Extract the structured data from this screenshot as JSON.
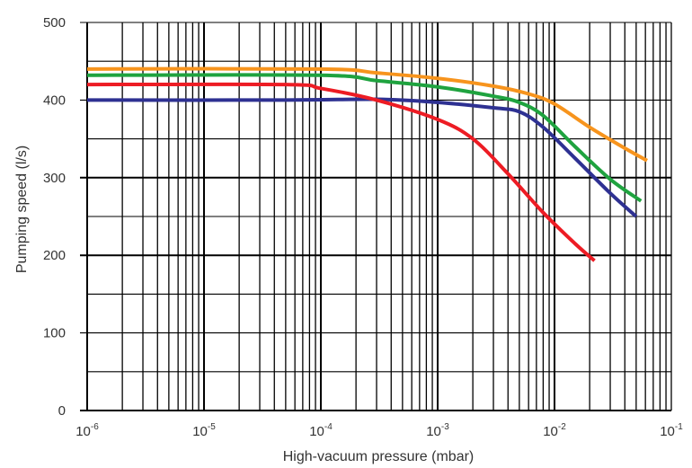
{
  "chart_data": {
    "type": "line",
    "xlabel": "High-vacuum pressure (mbar)",
    "ylabel": "Pumping speed (l/s)",
    "xscale": "log",
    "xlim": [
      1e-06,
      0.1
    ],
    "ylim": [
      0,
      500
    ],
    "grid": true,
    "x_ticks": [
      {
        "base": "10",
        "exp": "-6"
      },
      {
        "base": "10",
        "exp": "-5"
      },
      {
        "base": "10",
        "exp": "-4"
      },
      {
        "base": "10",
        "exp": "-3"
      },
      {
        "base": "10",
        "exp": "-2"
      },
      {
        "base": "10",
        "exp": "-1"
      }
    ],
    "y_ticks": [
      "0",
      "100",
      "200",
      "300",
      "400",
      "500"
    ],
    "series": [
      {
        "color": "#f7941d",
        "points": [
          [
            1e-06,
            440
          ],
          [
            0.0001,
            440
          ],
          [
            0.0003,
            435
          ],
          [
            0.001,
            428
          ],
          [
            0.003,
            418
          ],
          [
            0.006,
            408
          ],
          [
            0.01,
            395
          ],
          [
            0.02,
            365
          ],
          [
            0.04,
            338
          ],
          [
            0.062,
            322
          ]
        ]
      },
      {
        "color": "#1fa33f",
        "points": [
          [
            1e-06,
            432
          ],
          [
            0.0001,
            432
          ],
          [
            0.0003,
            425
          ],
          [
            0.001,
            417
          ],
          [
            0.003,
            405
          ],
          [
            0.005,
            397
          ],
          [
            0.008,
            380
          ],
          [
            0.015,
            340
          ],
          [
            0.03,
            298
          ],
          [
            0.055,
            270
          ]
        ]
      },
      {
        "color": "#2e3192",
        "points": [
          [
            1e-06,
            400
          ],
          [
            5e-05,
            400
          ],
          [
            0.0003,
            401
          ],
          [
            0.001,
            397
          ],
          [
            0.003,
            390
          ],
          [
            0.005,
            385
          ],
          [
            0.008,
            365
          ],
          [
            0.015,
            325
          ],
          [
            0.03,
            280
          ],
          [
            0.05,
            250
          ]
        ]
      },
      {
        "color": "#ed1c24",
        "points": [
          [
            1e-06,
            420
          ],
          [
            5e-05,
            420
          ],
          [
            0.0001,
            415
          ],
          [
            0.0003,
            400
          ],
          [
            0.001,
            375
          ],
          [
            0.002,
            350
          ],
          [
            0.004,
            305
          ],
          [
            0.008,
            255
          ],
          [
            0.015,
            215
          ],
          [
            0.022,
            193
          ]
        ]
      }
    ]
  }
}
